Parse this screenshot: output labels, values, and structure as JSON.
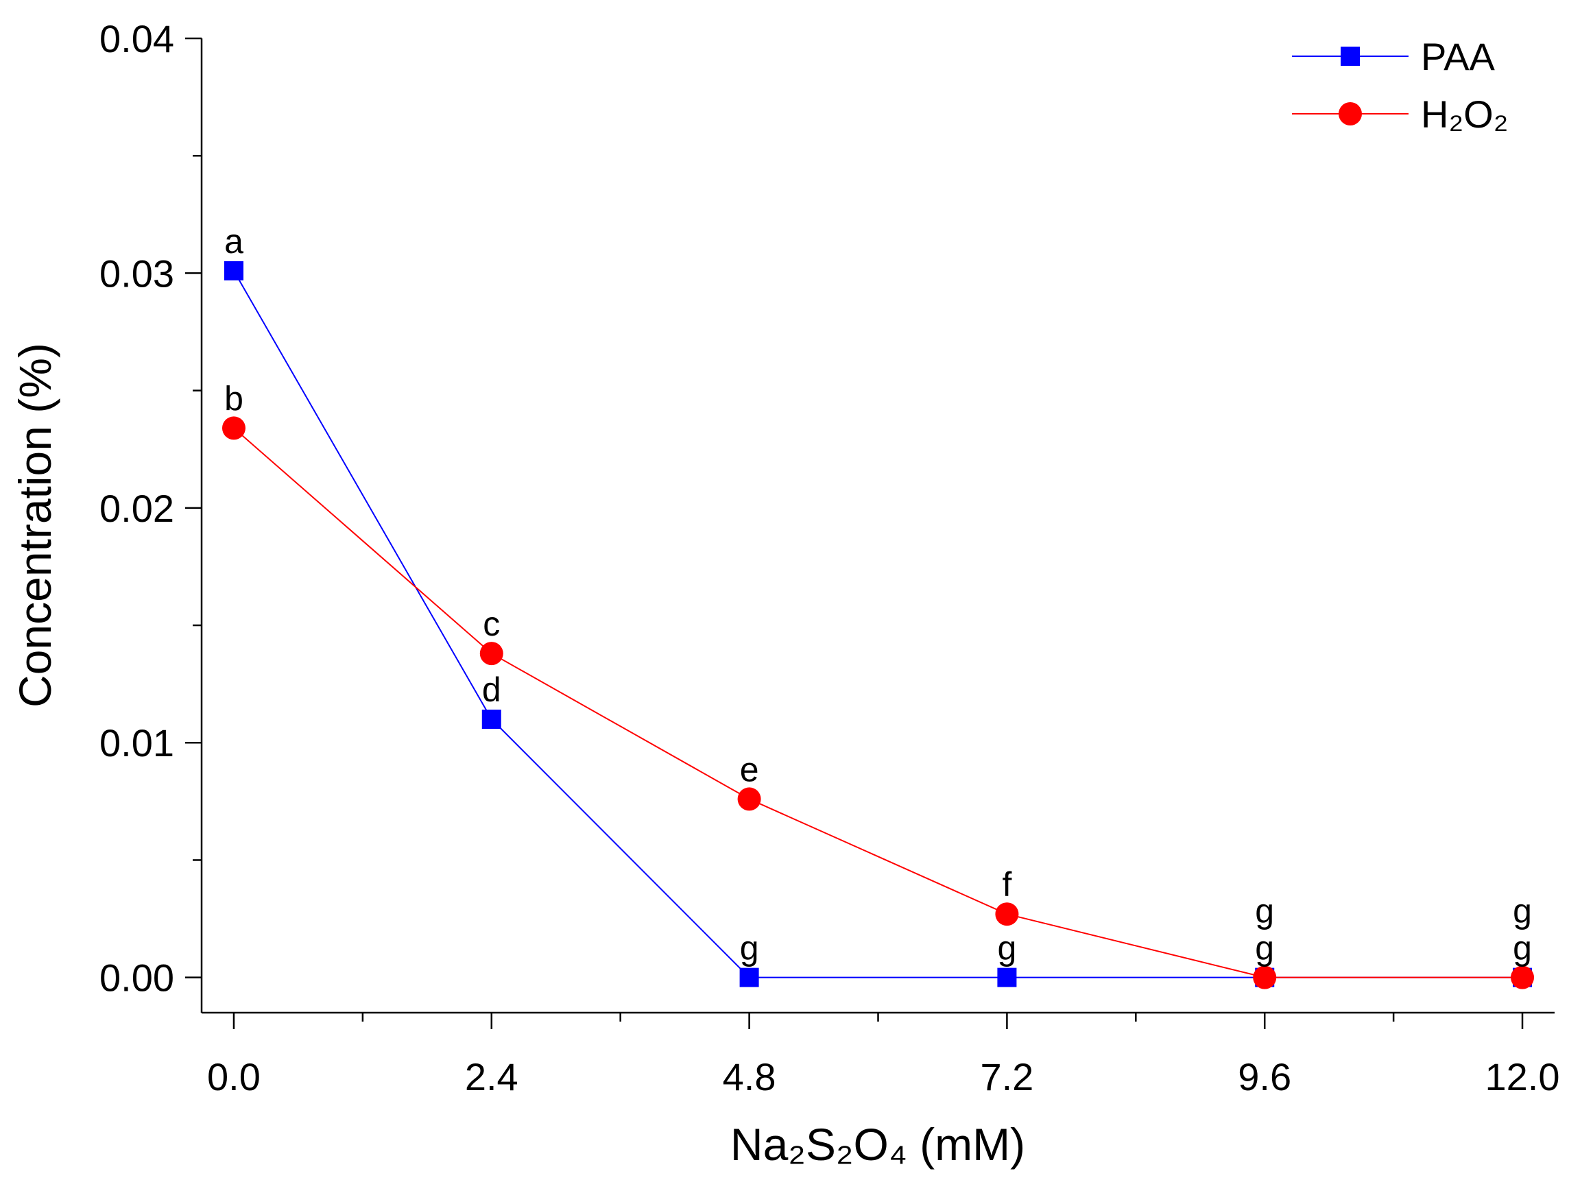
{
  "chart_data": {
    "type": "line",
    "title": "",
    "xlabel": "Na₂S₂O₄ (mM)",
    "ylabel": "Concentration (%)",
    "x": [
      0.0,
      2.4,
      4.8,
      7.2,
      9.6,
      12.0
    ],
    "xlim": [
      -0.3,
      12.3
    ],
    "ylim": [
      -0.0015,
      0.04
    ],
    "xticks": [
      0.0,
      2.4,
      4.8,
      7.2,
      9.6,
      12.0
    ],
    "xtick_labels": [
      "0.0",
      "2.4",
      "4.8",
      "7.2",
      "9.6",
      "12.0"
    ],
    "xminor": [
      1.2,
      3.6,
      6.0,
      8.4,
      10.8
    ],
    "yticks": [
      0.0,
      0.01,
      0.02,
      0.03,
      0.04
    ],
    "ytick_labels": [
      "0.00",
      "0.01",
      "0.02",
      "0.03",
      "0.04"
    ],
    "yminor": [
      0.005,
      0.015,
      0.025,
      0.035
    ],
    "grid": false,
    "legend_position": "top-right",
    "series": [
      {
        "name": "PAA",
        "color": "#0000ff",
        "marker": "square",
        "values": [
          0.0301,
          0.011,
          0.0,
          0.0,
          0.0,
          0.0
        ],
        "letters": [
          "a",
          "d",
          "g",
          "g",
          "g",
          "g"
        ]
      },
      {
        "name": "H₂O₂",
        "color": "#ff0000",
        "marker": "circle",
        "values": [
          0.0234,
          0.0138,
          0.0076,
          0.0027,
          0.0,
          0.0
        ],
        "letters": [
          "b",
          "c",
          "e",
          "f",
          "g",
          "g"
        ]
      }
    ]
  }
}
